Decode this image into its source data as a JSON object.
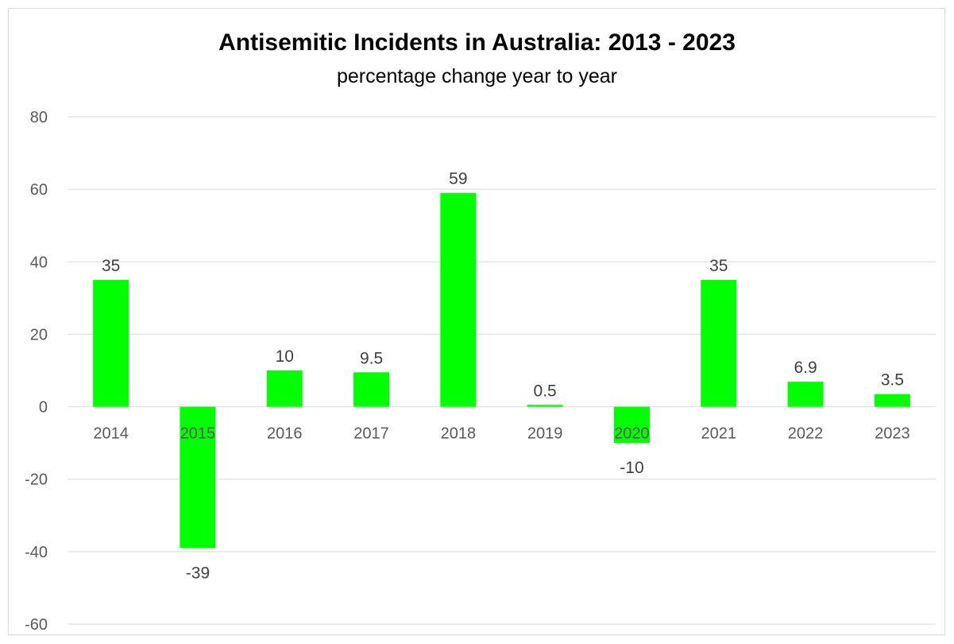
{
  "chart_data": {
    "type": "bar",
    "title": "Antisemitic Incidents in Australia: 2013 - 2023",
    "subtitle": "percentage change year to year",
    "xlabel": "",
    "ylabel": "",
    "categories": [
      "2014",
      "2015",
      "2016",
      "2017",
      "2018",
      "2019",
      "2020",
      "2021",
      "2022",
      "2023"
    ],
    "values": [
      35,
      -39,
      10,
      9.5,
      59,
      0.5,
      -10,
      35,
      6.9,
      3.5
    ],
    "data_labels": [
      "35",
      "-39",
      "10",
      "9.5",
      "59",
      "0.5",
      "-10",
      "35",
      "6.9",
      "3.5"
    ],
    "ylim": [
      -60,
      80
    ],
    "yticks": [
      80,
      60,
      40,
      20,
      0,
      -20,
      -40,
      -60
    ],
    "grid": true,
    "legend": "none",
    "bar_color": "#00ff00",
    "grid_color": "#d9d9d9"
  }
}
